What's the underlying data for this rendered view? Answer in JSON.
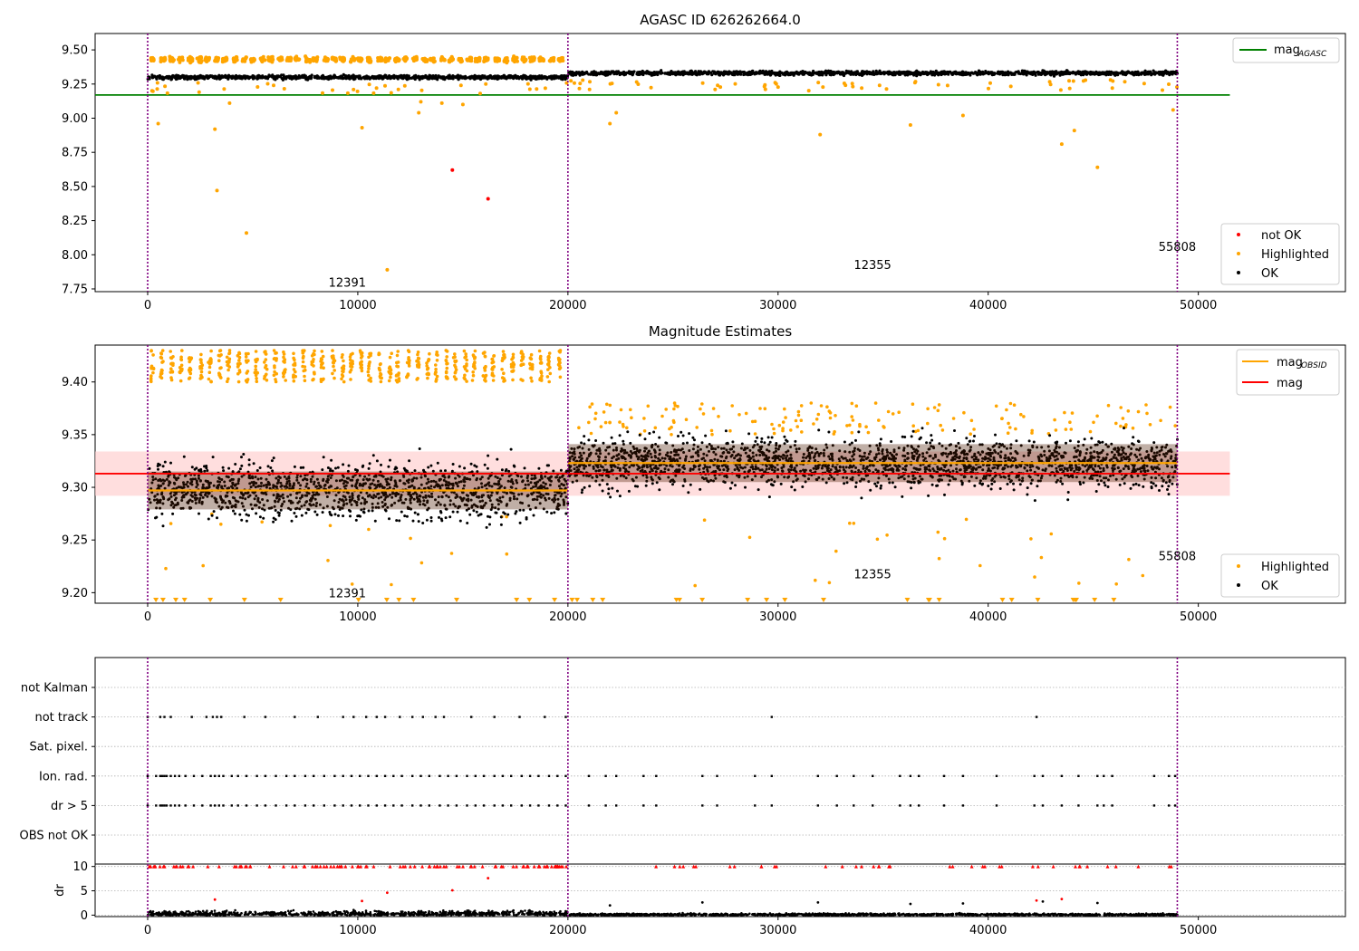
{
  "chart_data": [
    {
      "type": "scatter",
      "title": "AGASC ID 626262664.0",
      "xlim": [
        -2500,
        57000
      ],
      "ylim": [
        7.73,
        9.62
      ],
      "xticks": [
        0,
        10000,
        20000,
        30000,
        40000,
        50000
      ],
      "xtick_labels": [
        "0",
        "10000",
        "20000",
        "30000",
        "40000",
        "50000"
      ],
      "yticks": [
        7.75,
        8.0,
        8.25,
        8.5,
        8.75,
        9.0,
        9.25,
        9.5
      ],
      "ytick_labels": [
        "7.75",
        "8.00",
        "8.25",
        "8.50",
        "8.75",
        "9.00",
        "9.25",
        "9.50"
      ],
      "vlines": [
        0,
        20000,
        49000
      ],
      "hline": {
        "name": "mag",
        "sub": "AGASC",
        "y": 9.17,
        "color": "#008000",
        "x_end": 51500
      },
      "annotations": [
        {
          "text": "12391",
          "x": 9500,
          "y": 7.8
        },
        {
          "text": "12355",
          "x": 34500,
          "y": 7.93
        },
        {
          "text": "55808",
          "x": 49000,
          "y": 8.06
        }
      ],
      "series": [
        {
          "name": "OK",
          "color": "#000000",
          "segments": [
            {
              "x0": 0,
              "x1": 20000,
              "mean": 9.3,
              "spread": 0.02
            },
            {
              "x0": 20000,
              "x1": 49000,
              "mean": 9.33,
              "spread": 0.02
            }
          ]
        },
        {
          "name": "Highlighted",
          "color": "#ffa500",
          "bands": {
            "x0": 0,
            "x1": 20000,
            "y": 9.43
          },
          "outliers": [
            [
              500,
              8.96
            ],
            [
              3200,
              8.92
            ],
            [
              3300,
              8.47
            ],
            [
              4700,
              8.16
            ],
            [
              11400,
              7.89
            ],
            [
              10200,
              8.93
            ],
            [
              12900,
              9.04
            ],
            [
              14000,
              9.11
            ],
            [
              15000,
              9.1
            ],
            [
              22000,
              8.96
            ],
            [
              22300,
              9.04
            ],
            [
              32000,
              8.88
            ],
            [
              36300,
              8.95
            ],
            [
              38800,
              9.02
            ],
            [
              43500,
              8.81
            ],
            [
              44100,
              8.91
            ],
            [
              45200,
              8.64
            ],
            [
              48800,
              9.06
            ],
            [
              3900,
              9.11
            ],
            [
              13000,
              9.12
            ]
          ]
        },
        {
          "name": "not OK",
          "color": "#ff0000",
          "points": [
            [
              14500,
              8.62
            ],
            [
              16200,
              8.41
            ]
          ]
        }
      ],
      "legend": {
        "position": "top-right, lower-right"
      }
    },
    {
      "type": "scatter",
      "title": "Magnitude Estimates",
      "xlim": [
        -2500,
        57000
      ],
      "ylim": [
        9.19,
        9.435
      ],
      "xticks": [
        0,
        10000,
        20000,
        30000,
        40000,
        50000
      ],
      "xtick_labels": [
        "0",
        "10000",
        "20000",
        "30000",
        "40000",
        "50000"
      ],
      "yticks": [
        9.2,
        9.25,
        9.3,
        9.35,
        9.4
      ],
      "ytick_labels": [
        "9.20",
        "9.25",
        "9.30",
        "9.35",
        "9.40"
      ],
      "vlines": [
        0,
        20000,
        49000
      ],
      "mag_line": {
        "name": "mag",
        "y": 9.313,
        "band": [
          9.292,
          9.334
        ],
        "color": "#ff0000",
        "x_end": 51500
      },
      "mag_obsid": {
        "name": "mag",
        "sub": "OBSID",
        "color": "#ffa500",
        "segments": [
          {
            "x0": 0,
            "x1": 20000,
            "y": 9.297
          },
          {
            "x0": 20000,
            "x1": 49000,
            "y": 9.323
          }
        ]
      },
      "annotations": [
        {
          "text": "12391",
          "x": 9500,
          "y": 9.2
        },
        {
          "text": "12355",
          "x": 34500,
          "y": 9.218
        },
        {
          "text": "55808",
          "x": 49000,
          "y": 9.235
        }
      ],
      "series": [
        {
          "name": "OK",
          "color": "#000000",
          "segments": [
            {
              "x0": 0,
              "x1": 20000,
              "mean": 9.297,
              "spread": 0.04
            },
            {
              "x0": 20000,
              "x1": 49000,
              "mean": 9.323,
              "spread": 0.035
            }
          ]
        },
        {
          "name": "Highlighted",
          "color": "#ffa500"
        }
      ],
      "legend": {
        "position": "top-right, lower-right"
      }
    },
    {
      "type": "scatter",
      "title": "",
      "xlim": [
        -2500,
        57000
      ],
      "xticks": [
        0,
        10000,
        20000,
        30000,
        40000,
        50000
      ],
      "xtick_labels": [
        "0",
        "10000",
        "20000",
        "30000",
        "40000",
        "50000"
      ],
      "vlines": [
        0,
        20000,
        49000
      ],
      "flag_rows": [
        "not Kalman",
        "not track",
        "Sat. pixel.",
        "Ion. rad.",
        "dr > 5",
        "OBS not OK"
      ],
      "flag_x": {
        "not track": [
          0,
          600,
          800,
          1100,
          2100,
          2800,
          3100,
          3300,
          3500,
          4600,
          5600,
          7000,
          8100,
          9300,
          9800,
          10400,
          10900,
          11300,
          12000,
          12600,
          13100,
          13700,
          14100,
          15400,
          16500,
          17700,
          18900,
          19900,
          29700,
          42300
        ],
        "Ion. rad.": [
          0,
          400,
          600,
          700,
          800,
          900,
          1100,
          1300,
          1500,
          1800,
          2200,
          2600,
          3000,
          3200,
          3400,
          3600,
          4000,
          4300,
          4700,
          5200,
          5600,
          6100,
          6600,
          7000,
          7500,
          7900,
          8400,
          8900,
          9300,
          9700,
          10100,
          10500,
          10900,
          11300,
          11700,
          12100,
          12600,
          13000,
          13400,
          13900,
          14300,
          14700,
          15200,
          15600,
          16000,
          16500,
          16900,
          17300,
          17800,
          18200,
          18600,
          19100,
          19500,
          19900,
          21000,
          21800,
          22300,
          23600,
          24200,
          26400,
          27100,
          28900,
          29700,
          31900,
          32800,
          33600,
          34500,
          35800,
          36300,
          36700,
          37900,
          38800,
          40400,
          42200,
          42600,
          43500,
          44300,
          45200,
          45500,
          45900,
          47900,
          48600,
          48900
        ],
        "dr > 5": [
          0,
          400,
          600,
          700,
          800,
          900,
          1100,
          1300,
          1500,
          1800,
          2200,
          2600,
          3000,
          3200,
          3400,
          3600,
          4000,
          4300,
          4700,
          5200,
          5600,
          6100,
          6600,
          7000,
          7500,
          7900,
          8400,
          8900,
          9300,
          9700,
          10100,
          10500,
          10900,
          11300,
          11700,
          12100,
          12600,
          13000,
          13400,
          13900,
          14300,
          14700,
          15200,
          15600,
          16000,
          16500,
          16900,
          17300,
          17800,
          18200,
          18600,
          19100,
          19500,
          19900,
          21000,
          21800,
          22300,
          23600,
          24200,
          26400,
          27100,
          28900,
          29700,
          31900,
          32800,
          33600,
          34500,
          35800,
          36300,
          36700,
          37900,
          38800,
          40400,
          42200,
          42600,
          43500,
          44300,
          45200,
          45500,
          45900,
          47900,
          48600,
          48900
        ]
      },
      "dr": {
        "ylabel": "dr",
        "ylim": [
          -0.3,
          10.5
        ],
        "yticks": [
          0,
          5,
          10
        ],
        "ytick_labels": [
          "0",
          "5",
          "10"
        ],
        "clipped_y": 10,
        "outliers": [
          [
            3200,
            3.2
          ],
          [
            10200,
            2.9
          ],
          [
            11400,
            4.6
          ],
          [
            14500,
            5.1
          ],
          [
            16200,
            7.6
          ],
          [
            42300,
            3.0
          ],
          [
            42600,
            2.8
          ],
          [
            43500,
            3.3
          ],
          [
            45200,
            2.5
          ],
          [
            22000,
            2.0
          ],
          [
            26400,
            2.6
          ],
          [
            31900,
            2.6
          ],
          [
            36300,
            2.3
          ],
          [
            38800,
            2.4
          ]
        ]
      }
    }
  ]
}
